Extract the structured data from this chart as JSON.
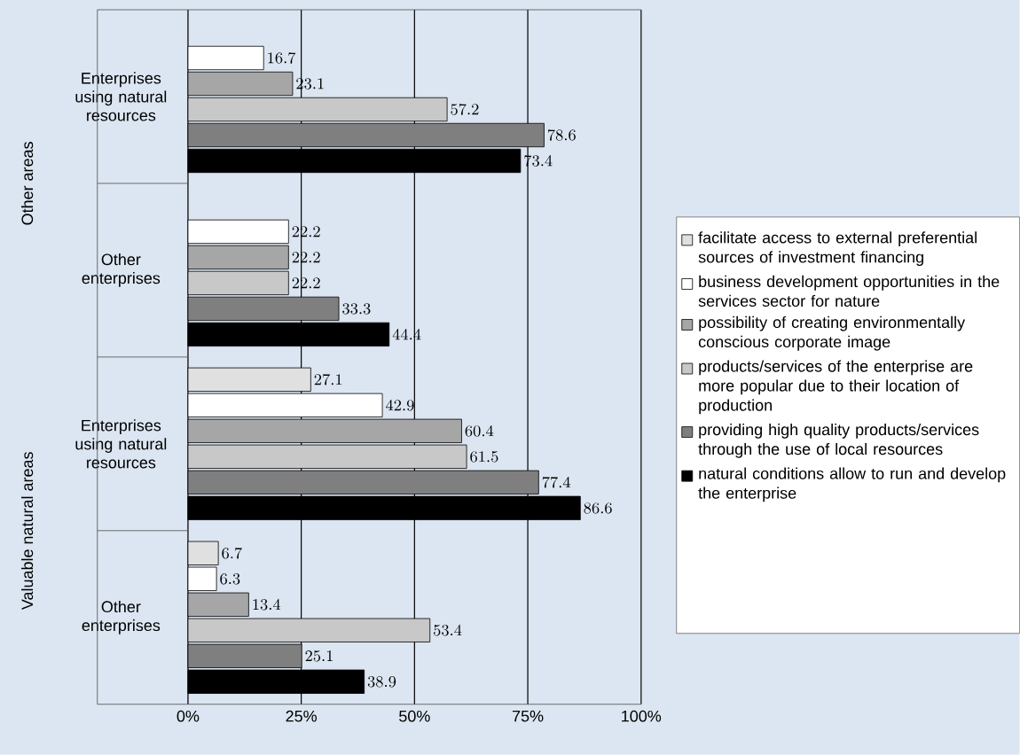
{
  "chart_data": {
    "type": "bar",
    "orientation": "horizontal",
    "categories": [
      "Enterprises using natural resources",
      "Other enterprises",
      "Enterprises using natural resources",
      "Other enterprises"
    ],
    "series": [
      {
        "name": "facilitate access to external preferential sources of investment financing",
        "color": "#e0e0e0",
        "values": [
          null,
          null,
          27.1,
          6.7
        ]
      },
      {
        "name": "business development opportunities in the services sector for nature",
        "color": "#ffffff",
        "values": [
          16.7,
          22.2,
          42.9,
          6.3
        ]
      },
      {
        "name": "possibility of creating environmentally conscious corporate image",
        "color": "#a6a6a6",
        "values": [
          23.1,
          22.2,
          60.4,
          13.4
        ]
      },
      {
        "name": "products/services of the enterprise are more popular due to their location of production",
        "color": "#c8c8c8",
        "values": [
          57.2,
          22.2,
          61.5,
          53.4
        ]
      },
      {
        "name": "providing high quality products/services through the use of local resources",
        "color": "#7f7f7f",
        "values": [
          78.6,
          33.3,
          77.4,
          25.1
        ]
      },
      {
        "name": "natural conditions allow to run and develop the enterprise",
        "color": "#000000",
        "values": [
          73.4,
          44.4,
          86.6,
          38.9
        ]
      }
    ],
    "xlim": [
      0,
      100
    ],
    "xticks": [
      {
        "value": 0,
        "label": "0%"
      },
      {
        "value": 25,
        "label": "25%"
      },
      {
        "value": 50,
        "label": "50%"
      },
      {
        "value": 75,
        "label": "75%"
      },
      {
        "value": 100,
        "label": "100%"
      }
    ],
    "annotations": [
      "Other areas",
      "Valuable natural areas"
    ],
    "grid": "x",
    "legend": "right",
    "data_labels": true
  }
}
